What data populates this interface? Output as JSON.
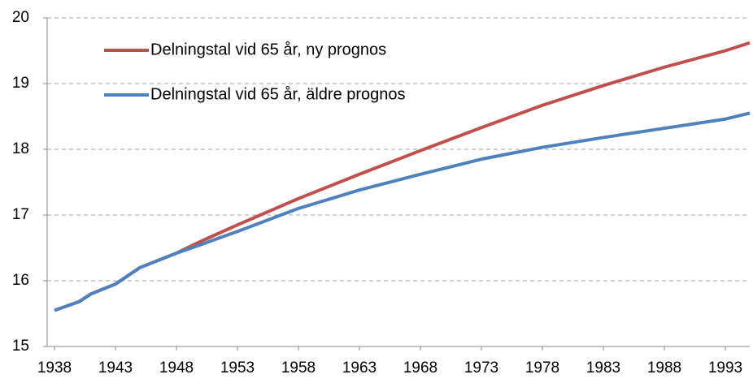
{
  "chart_data": {
    "type": "line",
    "x": [
      1938,
      1940,
      1941,
      1943,
      1945,
      1948,
      1950,
      1953,
      1958,
      1963,
      1968,
      1973,
      1978,
      1983,
      1988,
      1993,
      1995
    ],
    "series": [
      {
        "name": "Delningstal vid 65 år, ny prognos",
        "color": "#c0504d",
        "values": [
          15.55,
          15.68,
          15.8,
          15.95,
          16.2,
          16.42,
          16.6,
          16.85,
          17.25,
          17.62,
          17.98,
          18.33,
          18.67,
          18.97,
          19.25,
          19.5,
          19.62
        ]
      },
      {
        "name": "Delningstal vid 65 år, äldre prognos",
        "color": "#4f81bd",
        "values": [
          15.55,
          15.68,
          15.8,
          15.95,
          16.2,
          16.42,
          16.55,
          16.75,
          17.1,
          17.38,
          17.62,
          17.85,
          18.03,
          18.18,
          18.32,
          18.46,
          18.55
        ]
      }
    ],
    "xlim": [
      1938,
      1995
    ],
    "xticks": [
      1938,
      1943,
      1948,
      1953,
      1958,
      1963,
      1968,
      1973,
      1978,
      1983,
      1988,
      1993
    ],
    "ylim": [
      15,
      20
    ],
    "yticks": [
      15,
      16,
      17,
      18,
      19,
      20
    ],
    "grid": true,
    "legend": "upper left"
  }
}
